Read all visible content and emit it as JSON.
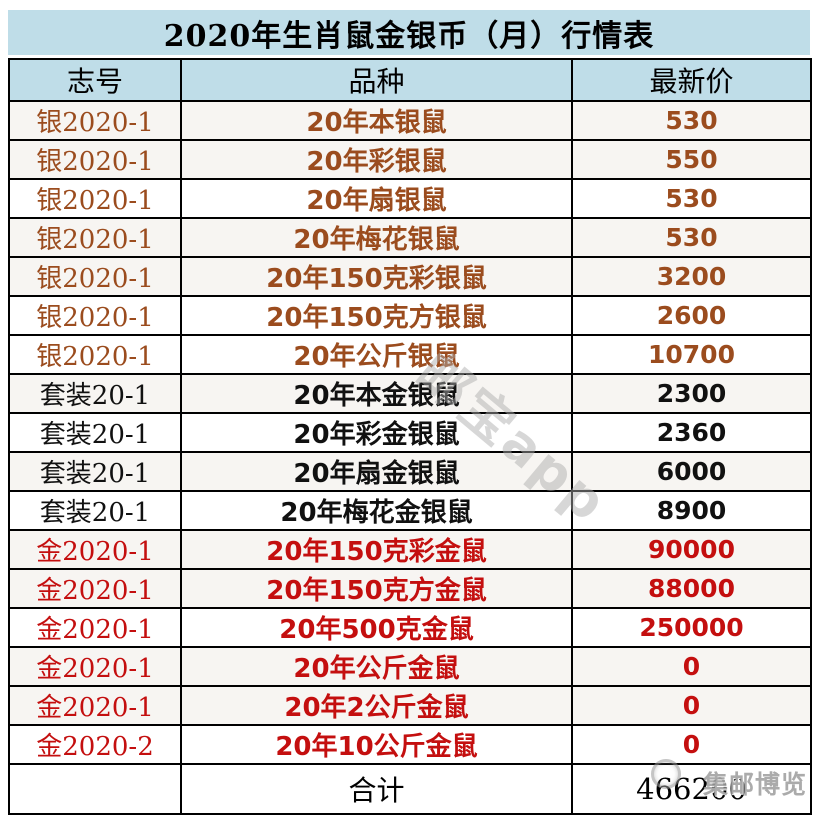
{
  "title": "2020年生肖鼠金银币（月）行情表",
  "table": {
    "headers": [
      "志号",
      "品种",
      "最新价"
    ],
    "rows": [
      {
        "code": "银2020-1",
        "name": "20年本银鼠",
        "price": "530",
        "category": "silver"
      },
      {
        "code": "银2020-1",
        "name": "20年彩银鼠",
        "price": "550",
        "category": "silver"
      },
      {
        "code": "银2020-1",
        "name": "20年扇银鼠",
        "price": "530",
        "category": "silver"
      },
      {
        "code": "银2020-1",
        "name": "20年梅花银鼠",
        "price": "530",
        "category": "silver"
      },
      {
        "code": "银2020-1",
        "name": "20年150克彩银鼠",
        "price": "3200",
        "category": "silver"
      },
      {
        "code": "银2020-1",
        "name": "20年150克方银鼠",
        "price": "2600",
        "category": "silver"
      },
      {
        "code": "银2020-1",
        "name": "20年公斤银鼠",
        "price": "10700",
        "category": "silver"
      },
      {
        "code": "套装20-1",
        "name": "20年本金银鼠",
        "price": "2300",
        "category": "set"
      },
      {
        "code": "套装20-1",
        "name": "20年彩金银鼠",
        "price": "2360",
        "category": "set"
      },
      {
        "code": "套装20-1",
        "name": "20年扇金银鼠",
        "price": "6000",
        "category": "set"
      },
      {
        "code": "套装20-1",
        "name": "20年梅花金银鼠",
        "price": "8900",
        "category": "set"
      },
      {
        "code": "金2020-1",
        "name": "20年150克彩金鼠",
        "price": "90000",
        "category": "gold"
      },
      {
        "code": "金2020-1",
        "name": "20年150克方金鼠",
        "price": "88000",
        "category": "gold"
      },
      {
        "code": "金2020-1",
        "name": "20年500克金鼠",
        "price": "250000",
        "category": "gold"
      },
      {
        "code": "金2020-1",
        "name": "20年公斤金鼠",
        "price": "0",
        "category": "gold"
      },
      {
        "code": "金2020-1",
        "name": "20年2公斤金鼠",
        "price": "0",
        "category": "gold"
      },
      {
        "code": "金2020-2",
        "name": "20年10公斤金鼠",
        "price": "0",
        "category": "gold"
      }
    ],
    "total_label": "合计",
    "total_value": "466200"
  },
  "watermarks": {
    "center": "邮宝app",
    "corner": "集邮博览"
  },
  "colors": {
    "header_bg": "#bfdde8",
    "silver_text": "#9b4c1e",
    "set_text": "#111111",
    "gold_text": "#c40f0f",
    "alt_row_bg": "#f7f5f2"
  }
}
